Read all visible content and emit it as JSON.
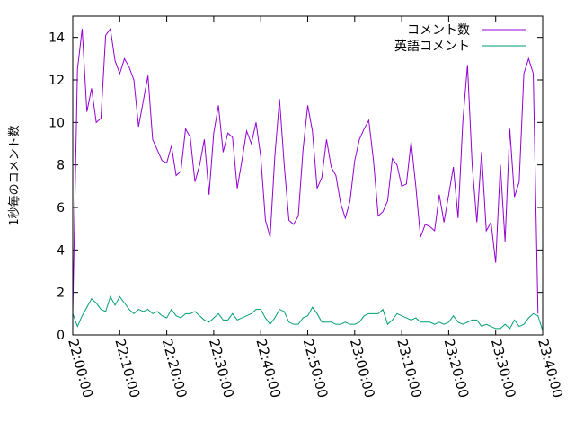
{
  "chart_data": {
    "type": "line",
    "title": "",
    "xlabel": "",
    "ylabel": "1秒毎のコメント数",
    "xlim": [
      "22:00:00",
      "23:40:00"
    ],
    "ylim": [
      0,
      15
    ],
    "yticks": [
      0,
      2,
      4,
      6,
      8,
      10,
      12,
      14
    ],
    "xticks": [
      "22:00:00",
      "22:10:00",
      "22:20:00",
      "22:30:00",
      "22:40:00",
      "22:50:00",
      "23:00:00",
      "23:10:00",
      "23:20:00",
      "23:30:00",
      "23:40:00"
    ],
    "grid": false,
    "legend_position": "top-right",
    "sample_interval_minutes": 1,
    "x_start": "22:00:00",
    "series": [
      {
        "name": "コメント数",
        "color": "#9400d3",
        "values": [
          1.0,
          12.5,
          14.4,
          10.5,
          11.6,
          10.0,
          10.2,
          14.1,
          14.4,
          12.9,
          12.3,
          13.0,
          12.6,
          12.0,
          9.8,
          11.0,
          12.2,
          9.2,
          8.7,
          8.2,
          8.1,
          8.9,
          7.5,
          7.7,
          9.7,
          9.3,
          7.2,
          8.0,
          9.2,
          6.6,
          9.5,
          10.8,
          8.6,
          9.5,
          9.3,
          6.9,
          8.2,
          9.6,
          9.0,
          10.0,
          8.4,
          5.4,
          4.6,
          8.4,
          11.1,
          8.0,
          5.4,
          5.2,
          5.6,
          8.7,
          10.8,
          9.6,
          6.9,
          7.4,
          9.2,
          7.9,
          7.5,
          6.2,
          5.5,
          6.3,
          8.2,
          9.2,
          9.7,
          10.1,
          8.2,
          5.6,
          5.8,
          6.3,
          8.3,
          8.0,
          7.0,
          7.1,
          9.1,
          7.0,
          4.6,
          5.2,
          5.1,
          4.9,
          6.6,
          5.3,
          6.6,
          7.9,
          5.5,
          10.0,
          12.7,
          8.0,
          5.3,
          8.6,
          4.9,
          5.3,
          3.4,
          8.0,
          4.4,
          9.7,
          6.5,
          7.2,
          12.3,
          13.0,
          12.3,
          1.0
        ]
      },
      {
        "name": "英語コメント",
        "color": "#009e73",
        "values": [
          1.0,
          0.4,
          0.9,
          1.3,
          1.7,
          1.5,
          1.2,
          1.1,
          1.8,
          1.4,
          1.8,
          1.5,
          1.2,
          1.0,
          1.2,
          1.1,
          1.2,
          1.0,
          1.1,
          0.9,
          0.8,
          1.2,
          0.9,
          0.8,
          1.0,
          1.0,
          1.1,
          0.9,
          0.7,
          0.6,
          0.8,
          1.0,
          0.7,
          0.7,
          1.0,
          0.7,
          0.8,
          0.9,
          1.0,
          1.2,
          1.2,
          0.8,
          0.5,
          0.8,
          1.2,
          1.1,
          0.6,
          0.5,
          0.5,
          0.8,
          0.9,
          1.3,
          1.0,
          0.6,
          0.6,
          0.6,
          0.5,
          0.5,
          0.6,
          0.5,
          0.5,
          0.6,
          0.9,
          1.0,
          1.0,
          1.0,
          1.2,
          0.5,
          0.7,
          1.0,
          0.9,
          0.8,
          0.7,
          0.8,
          0.6,
          0.6,
          0.6,
          0.5,
          0.6,
          0.5,
          0.6,
          0.9,
          0.6,
          0.5,
          0.6,
          0.7,
          0.7,
          0.4,
          0.5,
          0.4,
          0.3,
          0.3,
          0.5,
          0.3,
          0.7,
          0.4,
          0.5,
          0.8,
          1.0,
          0.9,
          0.2
        ]
      }
    ]
  }
}
